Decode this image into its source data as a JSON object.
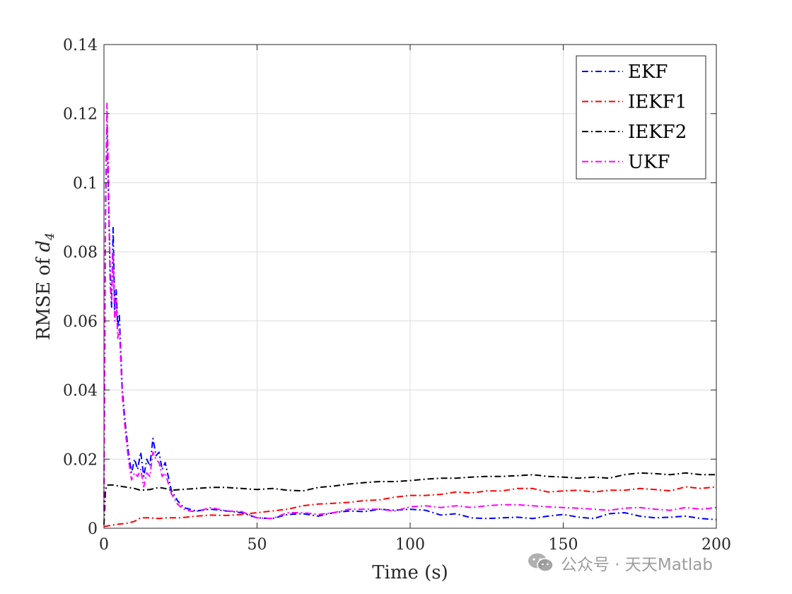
{
  "chart_data": {
    "type": "line",
    "title": "",
    "xlabel": "Time (s)",
    "ylabel_prefix": "RMSE of ",
    "ylabel_var": "d",
    "ylabel_sub": "4",
    "xlim": [
      0,
      200
    ],
    "ylim": [
      0,
      0.14
    ],
    "xticks": [
      0,
      50,
      100,
      150,
      200
    ],
    "xtick_labels": [
      "0",
      "50",
      "100",
      "150",
      "200"
    ],
    "yticks": [
      0,
      0.02,
      0.04,
      0.06,
      0.08,
      0.1,
      0.12,
      0.14
    ],
    "ytick_labels": [
      "0",
      "0.02",
      "0.04",
      "0.06",
      "0.08",
      "0.1",
      "0.12",
      "0.14"
    ],
    "grid": true,
    "legend_position": "top-right",
    "line_style": "dash-dot",
    "series": [
      {
        "name": "EKF",
        "color": "#0000ff",
        "x": [
          0,
          0.5,
          1,
          1.5,
          2,
          2.5,
          3,
          3.5,
          4,
          4.5,
          5,
          6,
          7,
          8,
          9,
          10,
          11,
          12,
          13,
          14,
          15,
          16,
          17,
          18,
          19,
          20,
          22,
          24,
          26,
          28,
          30,
          35,
          40,
          45,
          50,
          55,
          60,
          65,
          70,
          75,
          80,
          85,
          90,
          95,
          100,
          105,
          110,
          115,
          120,
          125,
          130,
          135,
          140,
          145,
          150,
          155,
          160,
          165,
          170,
          175,
          180,
          185,
          190,
          195,
          200
        ],
        "y": [
          0.005,
          0.09,
          0.117,
          0.095,
          0.075,
          0.064,
          0.087,
          0.063,
          0.069,
          0.058,
          0.062,
          0.04,
          0.03,
          0.022,
          0.016,
          0.02,
          0.017,
          0.022,
          0.015,
          0.02,
          0.018,
          0.026,
          0.021,
          0.022,
          0.017,
          0.019,
          0.011,
          0.008,
          0.006,
          0.0055,
          0.005,
          0.0055,
          0.005,
          0.0045,
          0.003,
          0.0028,
          0.004,
          0.0042,
          0.0035,
          0.0045,
          0.005,
          0.0048,
          0.0055,
          0.0052,
          0.0055,
          0.0052,
          0.0038,
          0.0042,
          0.003,
          0.0028,
          0.003,
          0.0032,
          0.0028,
          0.0035,
          0.004,
          0.0032,
          0.0028,
          0.0042,
          0.0045,
          0.0035,
          0.003,
          0.0032,
          0.0035,
          0.0028,
          0.0025
        ]
      },
      {
        "name": "IEKF1",
        "color": "#ff0000",
        "x": [
          0,
          2,
          5,
          8,
          10,
          12,
          15,
          18,
          20,
          25,
          30,
          35,
          40,
          45,
          50,
          55,
          60,
          65,
          70,
          75,
          80,
          85,
          90,
          95,
          100,
          105,
          110,
          115,
          120,
          125,
          130,
          135,
          140,
          145,
          150,
          155,
          160,
          165,
          170,
          175,
          180,
          185,
          190,
          195,
          200
        ],
        "y": [
          0.0005,
          0.0008,
          0.0012,
          0.0015,
          0.002,
          0.003,
          0.003,
          0.0028,
          0.003,
          0.003,
          0.0035,
          0.0038,
          0.0037,
          0.004,
          0.0045,
          0.005,
          0.0055,
          0.0065,
          0.007,
          0.0072,
          0.0075,
          0.008,
          0.0082,
          0.009,
          0.0095,
          0.0095,
          0.0098,
          0.0105,
          0.0102,
          0.0108,
          0.0108,
          0.0115,
          0.0115,
          0.0105,
          0.0108,
          0.011,
          0.0105,
          0.011,
          0.011,
          0.0115,
          0.0112,
          0.0108,
          0.012,
          0.0115,
          0.012
        ]
      },
      {
        "name": "IEKF2",
        "color": "#000000",
        "x": [
          0,
          0.5,
          1,
          3,
          5,
          8,
          10,
          12,
          15,
          18,
          20,
          22,
          25,
          30,
          35,
          40,
          45,
          50,
          55,
          60,
          65,
          70,
          75,
          80,
          85,
          90,
          95,
          100,
          105,
          110,
          115,
          120,
          125,
          130,
          135,
          140,
          145,
          150,
          155,
          160,
          165,
          170,
          175,
          180,
          185,
          190,
          195,
          200
        ],
        "y": [
          0.001,
          0.011,
          0.0125,
          0.0125,
          0.0122,
          0.0118,
          0.0115,
          0.011,
          0.0112,
          0.0118,
          0.0115,
          0.011,
          0.0112,
          0.0115,
          0.0118,
          0.0118,
          0.0115,
          0.0112,
          0.0115,
          0.011,
          0.0108,
          0.0118,
          0.0122,
          0.0128,
          0.0132,
          0.0135,
          0.0135,
          0.0138,
          0.0142,
          0.0145,
          0.0145,
          0.0148,
          0.015,
          0.015,
          0.0152,
          0.0155,
          0.015,
          0.0148,
          0.0145,
          0.0148,
          0.0145,
          0.0155,
          0.016,
          0.0158,
          0.0155,
          0.016,
          0.0155,
          0.0155
        ]
      },
      {
        "name": "UKF",
        "color": "#ff00ff",
        "x": [
          0,
          0.5,
          1,
          1.5,
          2,
          2.5,
          3,
          3.5,
          4,
          4.5,
          5,
          6,
          7,
          8,
          9,
          10,
          11,
          12,
          13,
          14,
          15,
          16,
          17,
          18,
          19,
          20,
          22,
          24,
          26,
          28,
          30,
          35,
          40,
          45,
          50,
          55,
          60,
          65,
          70,
          75,
          80,
          85,
          90,
          95,
          100,
          105,
          110,
          115,
          120,
          125,
          130,
          135,
          140,
          145,
          150,
          155,
          160,
          165,
          170,
          175,
          180,
          185,
          190,
          195,
          200
        ],
        "y": [
          0.005,
          0.095,
          0.123,
          0.1,
          0.07,
          0.066,
          0.08,
          0.06,
          0.066,
          0.055,
          0.058,
          0.038,
          0.028,
          0.02,
          0.014,
          0.016,
          0.015,
          0.017,
          0.012,
          0.016,
          0.015,
          0.022,
          0.02,
          0.019,
          0.015,
          0.016,
          0.01,
          0.007,
          0.0055,
          0.005,
          0.0048,
          0.006,
          0.005,
          0.0048,
          0.003,
          0.0028,
          0.0045,
          0.0045,
          0.004,
          0.0045,
          0.0055,
          0.0055,
          0.0055,
          0.005,
          0.0062,
          0.0065,
          0.006,
          0.0065,
          0.006,
          0.0065,
          0.0068,
          0.0068,
          0.0065,
          0.0062,
          0.006,
          0.0058,
          0.0055,
          0.0052,
          0.0058,
          0.006,
          0.0055,
          0.0052,
          0.006,
          0.0055,
          0.006
        ]
      }
    ]
  },
  "watermark": {
    "text": "公众号 · 天天Matlab",
    "icon": "wechat-icon"
  }
}
